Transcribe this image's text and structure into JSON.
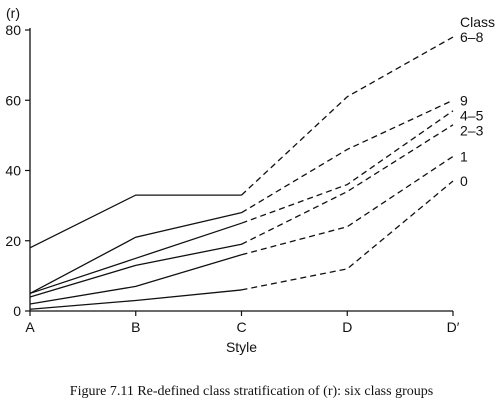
{
  "chart_data": {
    "type": "line",
    "x": [
      "A",
      "B",
      "C",
      "D",
      "D′"
    ],
    "xlabel": "Style",
    "ylabel": "(r)",
    "ylim": [
      0,
      80
    ],
    "yticks": [
      0,
      20,
      40,
      60,
      80
    ],
    "legend_title": "Class",
    "solid_through": "C",
    "series": [
      {
        "name": "6–8",
        "values": [
          18,
          33,
          33,
          61,
          78
        ]
      },
      {
        "name": "9",
        "values": [
          5,
          21,
          28,
          46,
          60
        ]
      },
      {
        "name": "4–5",
        "values": [
          5,
          15,
          25,
          36,
          57
        ]
      },
      {
        "name": "2–3",
        "values": [
          4,
          13,
          19,
          34,
          53
        ]
      },
      {
        "name": "1",
        "values": [
          2,
          7,
          16,
          24,
          44
        ]
      },
      {
        "name": "0",
        "values": [
          0.5,
          3,
          6,
          12,
          37
        ]
      }
    ]
  },
  "caption": "Figure  7.11    Re-defined class stratification of (r): six class groups"
}
